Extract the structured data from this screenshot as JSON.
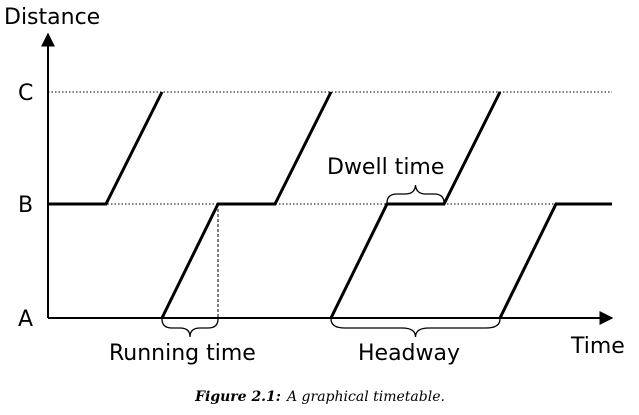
{
  "axes": {
    "y_label": "Distance",
    "x_label": "Time",
    "stations": [
      "A",
      "B",
      "C"
    ]
  },
  "annotations": {
    "dwell_time": "Dwell time",
    "running_time": "Running time",
    "headway": "Headway"
  },
  "caption": {
    "label": "Figure 2.1:",
    "text": "A graphical timetable."
  }
}
